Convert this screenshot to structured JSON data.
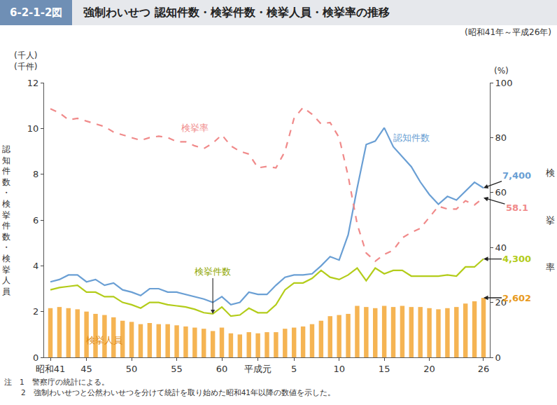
{
  "chart_data": {
    "type": "bar",
    "figure_label": "6-2-1-2図",
    "title": "強制わいせつ 認知件数・検挙件数・検挙人員・検挙率の推移",
    "subtitle": "(昭和41年～平成26年)",
    "y_units": [
      "(千人)",
      "(千件)"
    ],
    "y_label": "認知件数・検挙件数・検挙人員",
    "y2_unit": "(%)",
    "y2_label": "検挙率",
    "notes": [
      "注　1　警察庁の統計による。",
      "2　強制わいせつと公然わいせつを分けて統計を取り始めた昭和41年以降の数値を示した。"
    ],
    "categories": [
      "昭和41",
      null,
      null,
      null,
      "45",
      null,
      null,
      null,
      null,
      "50",
      null,
      null,
      null,
      null,
      "55",
      null,
      null,
      null,
      null,
      "60",
      null,
      null,
      null,
      "平成元",
      null,
      null,
      null,
      "5",
      null,
      null,
      null,
      null,
      "10",
      null,
      null,
      null,
      null,
      "15",
      null,
      null,
      null,
      null,
      "20",
      null,
      null,
      null,
      null,
      null,
      "26"
    ],
    "ylim": [
      0,
      12
    ],
    "yticks": [
      0,
      2,
      4,
      6,
      8,
      10,
      12
    ],
    "y2lim": [
      0,
      100
    ],
    "y2ticks": [
      0,
      20,
      40,
      60,
      80,
      100
    ],
    "grid": false,
    "series": [
      {
        "name": "検挙人員",
        "type": "bar",
        "color": "#f5b453",
        "end_label": "2,602",
        "values": [
          2.15,
          2.2,
          2.15,
          2.1,
          2.0,
          1.9,
          1.85,
          1.75,
          1.6,
          1.55,
          1.45,
          1.5,
          1.45,
          1.45,
          1.4,
          1.35,
          1.3,
          1.25,
          1.15,
          1.3,
          1.05,
          1.0,
          1.1,
          1.05,
          1.1,
          1.1,
          1.25,
          1.3,
          1.35,
          1.45,
          1.6,
          1.8,
          1.85,
          1.9,
          2.25,
          2.2,
          2.15,
          2.25,
          2.2,
          2.25,
          2.2,
          2.2,
          2.15,
          2.1,
          2.15,
          2.2,
          2.35,
          2.45,
          2.602
        ]
      },
      {
        "name": "認知件数",
        "type": "line",
        "color": "#6a9fd4",
        "line_style": "solid",
        "end_label": "7,400",
        "values": [
          3.3,
          3.4,
          3.6,
          3.6,
          3.3,
          3.4,
          3.15,
          3.25,
          2.95,
          2.85,
          2.7,
          3.0,
          3.0,
          2.85,
          2.85,
          2.75,
          2.65,
          2.55,
          2.4,
          2.65,
          2.3,
          2.4,
          2.85,
          2.75,
          2.75,
          3.15,
          3.5,
          3.6,
          3.6,
          3.65,
          4.0,
          4.4,
          4.25,
          5.35,
          7.4,
          9.3,
          9.45,
          10.03,
          9.2,
          8.75,
          8.33,
          7.66,
          7.11,
          6.69,
          7.03,
          6.87,
          7.26,
          7.65,
          7.4
        ]
      },
      {
        "name": "検挙件数",
        "type": "line",
        "color": "#b3cc1a",
        "line_style": "solid",
        "end_label": "4,300",
        "values": [
          2.95,
          3.05,
          3.1,
          3.15,
          2.85,
          2.85,
          2.65,
          2.65,
          2.4,
          2.3,
          2.15,
          2.4,
          2.4,
          2.3,
          2.25,
          2.2,
          2.1,
          1.95,
          1.9,
          2.2,
          1.8,
          1.85,
          2.15,
          1.95,
          1.95,
          2.3,
          2.95,
          3.25,
          3.25,
          3.45,
          3.8,
          3.5,
          3.4,
          3.6,
          3.9,
          3.35,
          3.9,
          3.65,
          3.8,
          3.8,
          3.55,
          3.55,
          3.55,
          3.55,
          3.6,
          3.55,
          3.95,
          3.95,
          4.3
        ]
      },
      {
        "name": "検挙率",
        "type": "line",
        "color": "#f08a8a",
        "line_style": "dashed",
        "axis": "y2",
        "end_label": "58.1",
        "values": [
          90.5,
          89,
          86.5,
          87,
          86,
          85,
          84,
          82,
          81,
          80,
          79,
          80,
          80.5,
          80,
          78.5,
          78.5,
          77,
          76,
          78,
          81,
          77,
          75,
          74,
          69,
          69.5,
          69,
          75,
          87,
          91,
          88.5,
          85,
          85.5,
          80,
          66,
          48.5,
          38,
          35,
          37.5,
          39,
          43.5,
          45.5,
          47,
          51,
          55,
          54,
          54,
          57,
          55.5,
          58.1
        ]
      }
    ]
  }
}
